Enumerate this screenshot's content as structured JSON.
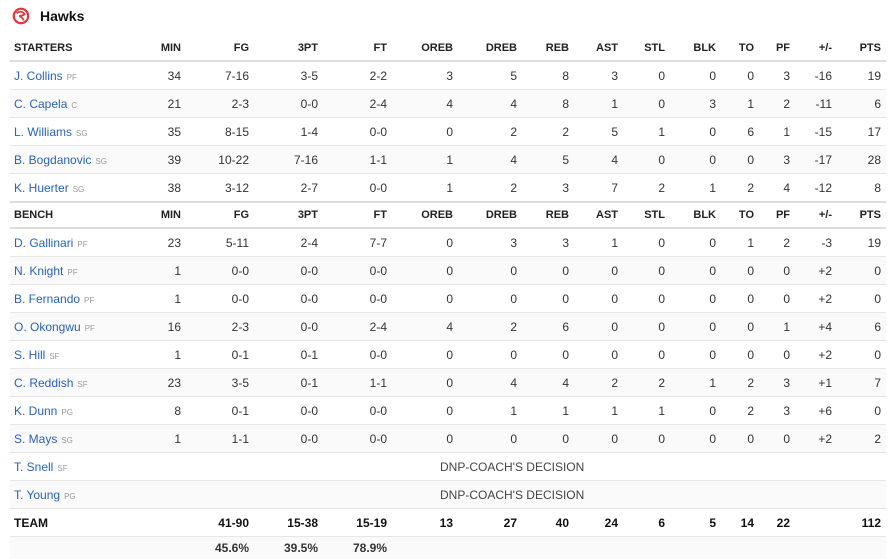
{
  "team": {
    "name": "Hawks",
    "brand_color": "#e03a3e",
    "logo_icon": "hawks-logo"
  },
  "columns": [
    "MIN",
    "FG",
    "3PT",
    "FT",
    "OREB",
    "DREB",
    "REB",
    "AST",
    "STL",
    "BLK",
    "TO",
    "PF",
    "+/-",
    "PTS"
  ],
  "starters_label": "STARTERS",
  "bench_label": "BENCH",
  "starters": [
    {
      "name": "J. Collins",
      "pos": "PF",
      "stats": [
        "34",
        "7-16",
        "3-5",
        "2-2",
        "3",
        "5",
        "8",
        "3",
        "0",
        "0",
        "0",
        "3",
        "-16",
        "19"
      ]
    },
    {
      "name": "C. Capela",
      "pos": "C",
      "stats": [
        "21",
        "2-3",
        "0-0",
        "2-4",
        "4",
        "4",
        "8",
        "1",
        "0",
        "3",
        "1",
        "2",
        "-11",
        "6"
      ]
    },
    {
      "name": "L. Williams",
      "pos": "SG",
      "stats": [
        "35",
        "8-15",
        "1-4",
        "0-0",
        "0",
        "2",
        "2",
        "5",
        "1",
        "0",
        "6",
        "1",
        "-15",
        "17"
      ]
    },
    {
      "name": "B. Bogdanovic",
      "pos": "SG",
      "stats": [
        "39",
        "10-22",
        "7-16",
        "1-1",
        "1",
        "4",
        "5",
        "4",
        "0",
        "0",
        "0",
        "3",
        "-17",
        "28"
      ]
    },
    {
      "name": "K. Huerter",
      "pos": "SG",
      "stats": [
        "38",
        "3-12",
        "2-7",
        "0-0",
        "1",
        "2",
        "3",
        "7",
        "2",
        "1",
        "2",
        "4",
        "-12",
        "8"
      ]
    }
  ],
  "bench": [
    {
      "name": "D. Gallinari",
      "pos": "PF",
      "stats": [
        "23",
        "5-11",
        "2-4",
        "7-7",
        "0",
        "3",
        "3",
        "1",
        "0",
        "0",
        "1",
        "2",
        "-3",
        "19"
      ]
    },
    {
      "name": "N. Knight",
      "pos": "PF",
      "stats": [
        "1",
        "0-0",
        "0-0",
        "0-0",
        "0",
        "0",
        "0",
        "0",
        "0",
        "0",
        "0",
        "0",
        "+2",
        "0"
      ]
    },
    {
      "name": "B. Fernando",
      "pos": "PF",
      "stats": [
        "1",
        "0-0",
        "0-0",
        "0-0",
        "0",
        "0",
        "0",
        "0",
        "0",
        "0",
        "0",
        "0",
        "+2",
        "0"
      ]
    },
    {
      "name": "O. Okongwu",
      "pos": "PF",
      "stats": [
        "16",
        "2-3",
        "0-0",
        "2-4",
        "4",
        "2",
        "6",
        "0",
        "0",
        "0",
        "0",
        "1",
        "+4",
        "6"
      ]
    },
    {
      "name": "S. Hill",
      "pos": "SF",
      "stats": [
        "1",
        "0-1",
        "0-1",
        "0-0",
        "0",
        "0",
        "0",
        "0",
        "0",
        "0",
        "0",
        "0",
        "+2",
        "0"
      ]
    },
    {
      "name": "C. Reddish",
      "pos": "SF",
      "stats": [
        "23",
        "3-5",
        "0-1",
        "1-1",
        "0",
        "4",
        "4",
        "2",
        "2",
        "1",
        "2",
        "3",
        "+1",
        "7"
      ]
    },
    {
      "name": "K. Dunn",
      "pos": "PG",
      "stats": [
        "8",
        "0-1",
        "0-0",
        "0-0",
        "0",
        "1",
        "1",
        "1",
        "1",
        "0",
        "2",
        "3",
        "+6",
        "0"
      ]
    },
    {
      "name": "S. Mays",
      "pos": "SG",
      "stats": [
        "1",
        "1-1",
        "0-0",
        "0-0",
        "0",
        "0",
        "0",
        "0",
        "0",
        "0",
        "0",
        "0",
        "+2",
        "2"
      ]
    },
    {
      "name": "T. Snell",
      "pos": "SF",
      "dnp": "DNP-COACH'S DECISION"
    },
    {
      "name": "T. Young",
      "pos": "PG",
      "dnp": "DNP-COACH'S DECISION"
    }
  ],
  "totals": {
    "label": "TEAM",
    "stats": [
      "",
      "41-90",
      "15-38",
      "15-19",
      "13",
      "27",
      "40",
      "24",
      "6",
      "5",
      "14",
      "22",
      "",
      "112"
    ]
  },
  "percentages": [
    "",
    "45.6%",
    "39.5%",
    "78.9%",
    "",
    "",
    "",
    "",
    "",
    "",
    "",
    "",
    "",
    ""
  ]
}
